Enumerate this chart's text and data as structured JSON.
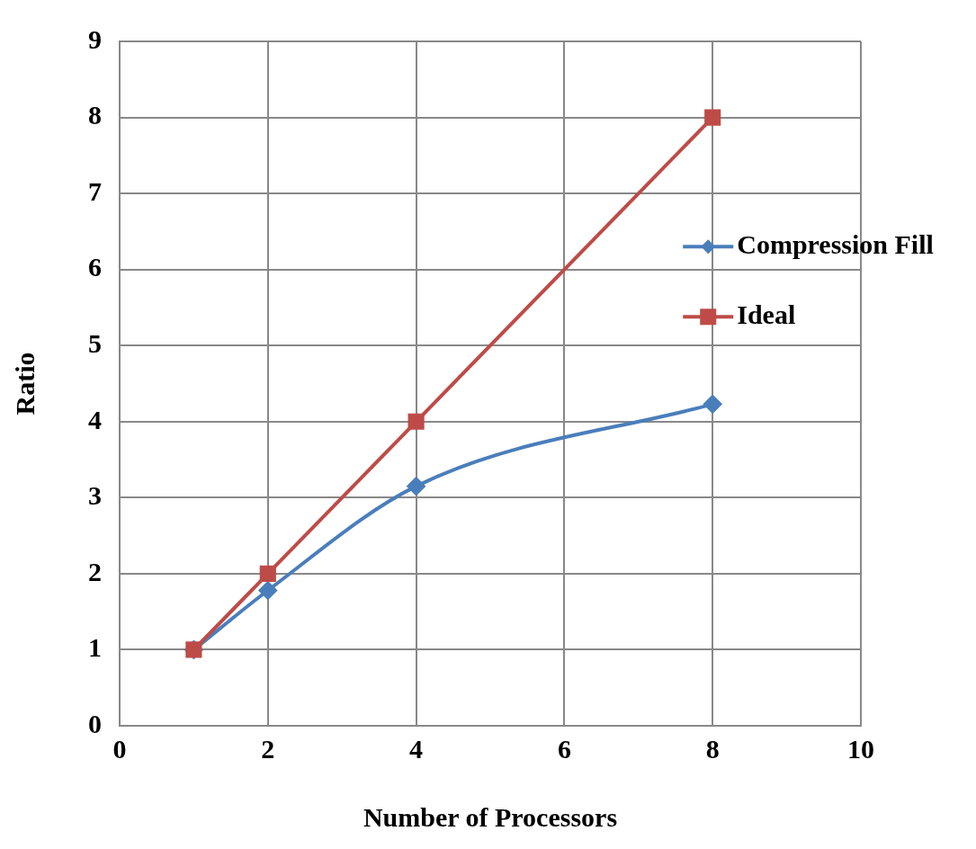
{
  "chart_data": {
    "type": "line",
    "xlabel": "Number of Processors",
    "ylabel": "Ratio",
    "xlim": [
      0,
      10
    ],
    "xticks": [
      0,
      2,
      4,
      6,
      8,
      10
    ],
    "ylim": [
      0,
      9
    ],
    "yticks": [
      0,
      1,
      2,
      3,
      4,
      5,
      6,
      7,
      8,
      9
    ],
    "grid": true,
    "legend": "right",
    "series": [
      {
        "name": "Compression Fill",
        "color": "#4a7ebb",
        "x": [
          1,
          2,
          4,
          8
        ],
        "values": [
          1,
          1.78,
          3.15,
          4.23
        ],
        "marker": "diamond"
      },
      {
        "name": "Ideal",
        "color": "#be4b48",
        "x": [
          1,
          2,
          4,
          8
        ],
        "values": [
          1,
          2,
          4,
          8
        ],
        "marker": "square"
      }
    ]
  }
}
